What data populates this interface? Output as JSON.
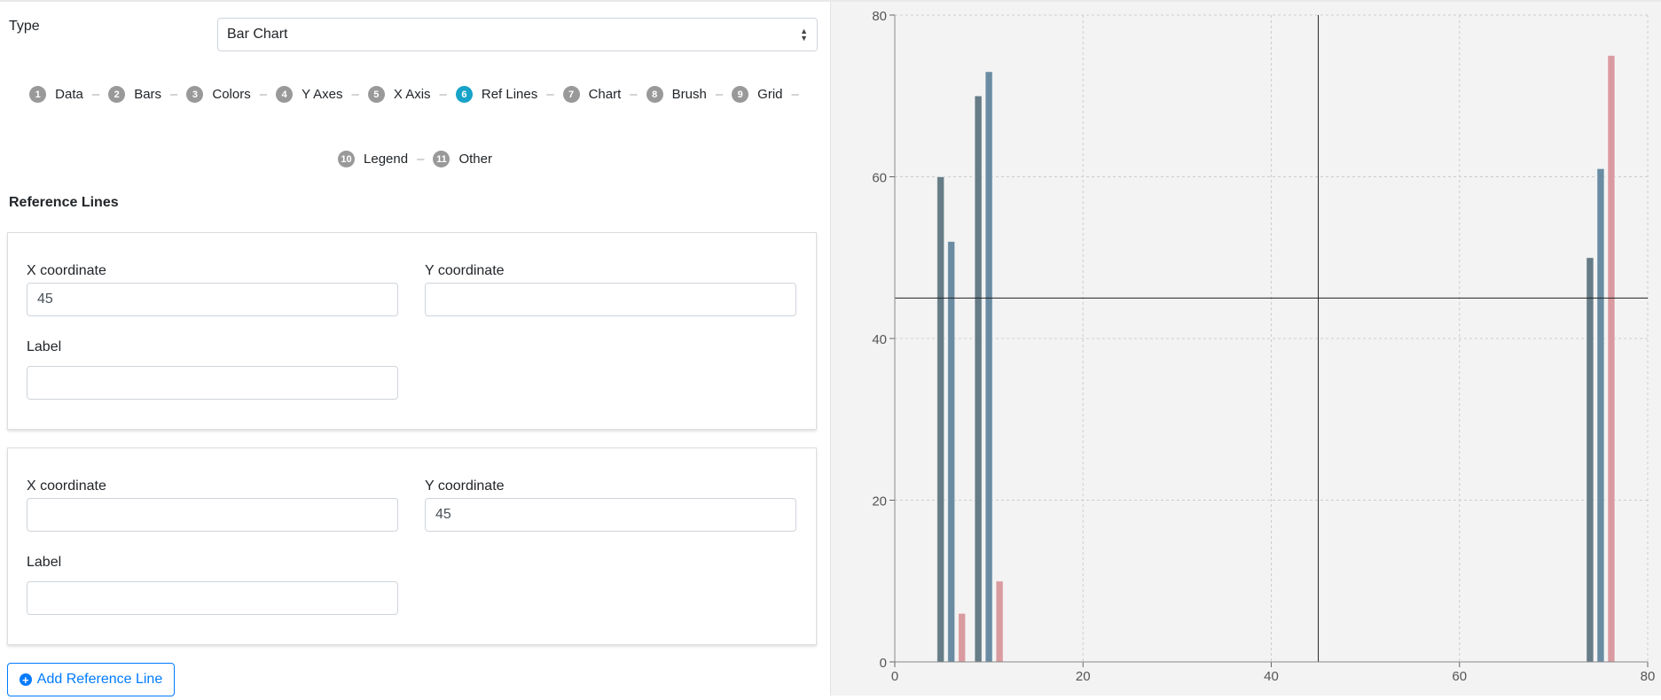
{
  "form": {
    "type_label": "Type",
    "type_value": "Bar Chart",
    "steps": [
      {
        "num": "1",
        "label": "Data"
      },
      {
        "num": "2",
        "label": "Bars"
      },
      {
        "num": "3",
        "label": "Colors"
      },
      {
        "num": "4",
        "label": "Y Axes"
      },
      {
        "num": "5",
        "label": "X Axis"
      },
      {
        "num": "6",
        "label": "Ref Lines",
        "active": true
      },
      {
        "num": "7",
        "label": "Chart"
      },
      {
        "num": "8",
        "label": "Brush"
      },
      {
        "num": "9",
        "label": "Grid"
      },
      {
        "num": "10",
        "label": "Legend"
      },
      {
        "num": "11",
        "label": "Other"
      }
    ],
    "section_title": "Reference Lines",
    "ref_lines": [
      {
        "x_label": "X coordinate",
        "x_value": "45",
        "y_label": "Y coordinate",
        "y_value": "",
        "label_label": "Label",
        "label_value": ""
      },
      {
        "x_label": "X coordinate",
        "x_value": "",
        "y_label": "Y coordinate",
        "y_value": "45",
        "label_label": "Label",
        "label_value": ""
      }
    ],
    "add_button": "Add Reference Line",
    "add_icon": "plus-circle-icon"
  },
  "chart_data": {
    "type": "bar",
    "x": [
      6,
      10,
      75
    ],
    "series": [
      {
        "values": [
          60,
          70,
          50
        ],
        "color": "#667c87"
      },
      {
        "values": [
          52,
          73,
          61
        ],
        "color": "#6a8ca3"
      },
      {
        "values": [
          6,
          10,
          75
        ],
        "color": "#d99ba0"
      }
    ],
    "xlim": [
      0,
      80
    ],
    "ylim": [
      0,
      80
    ],
    "xticks": [
      "0",
      "20",
      "40",
      "60",
      "80"
    ],
    "yticks": [
      "0",
      "20",
      "40",
      "60",
      "80"
    ],
    "grid": true,
    "reference_lines": [
      {
        "x": 45
      },
      {
        "y": 45
      }
    ],
    "background": "#f3f3f3"
  }
}
